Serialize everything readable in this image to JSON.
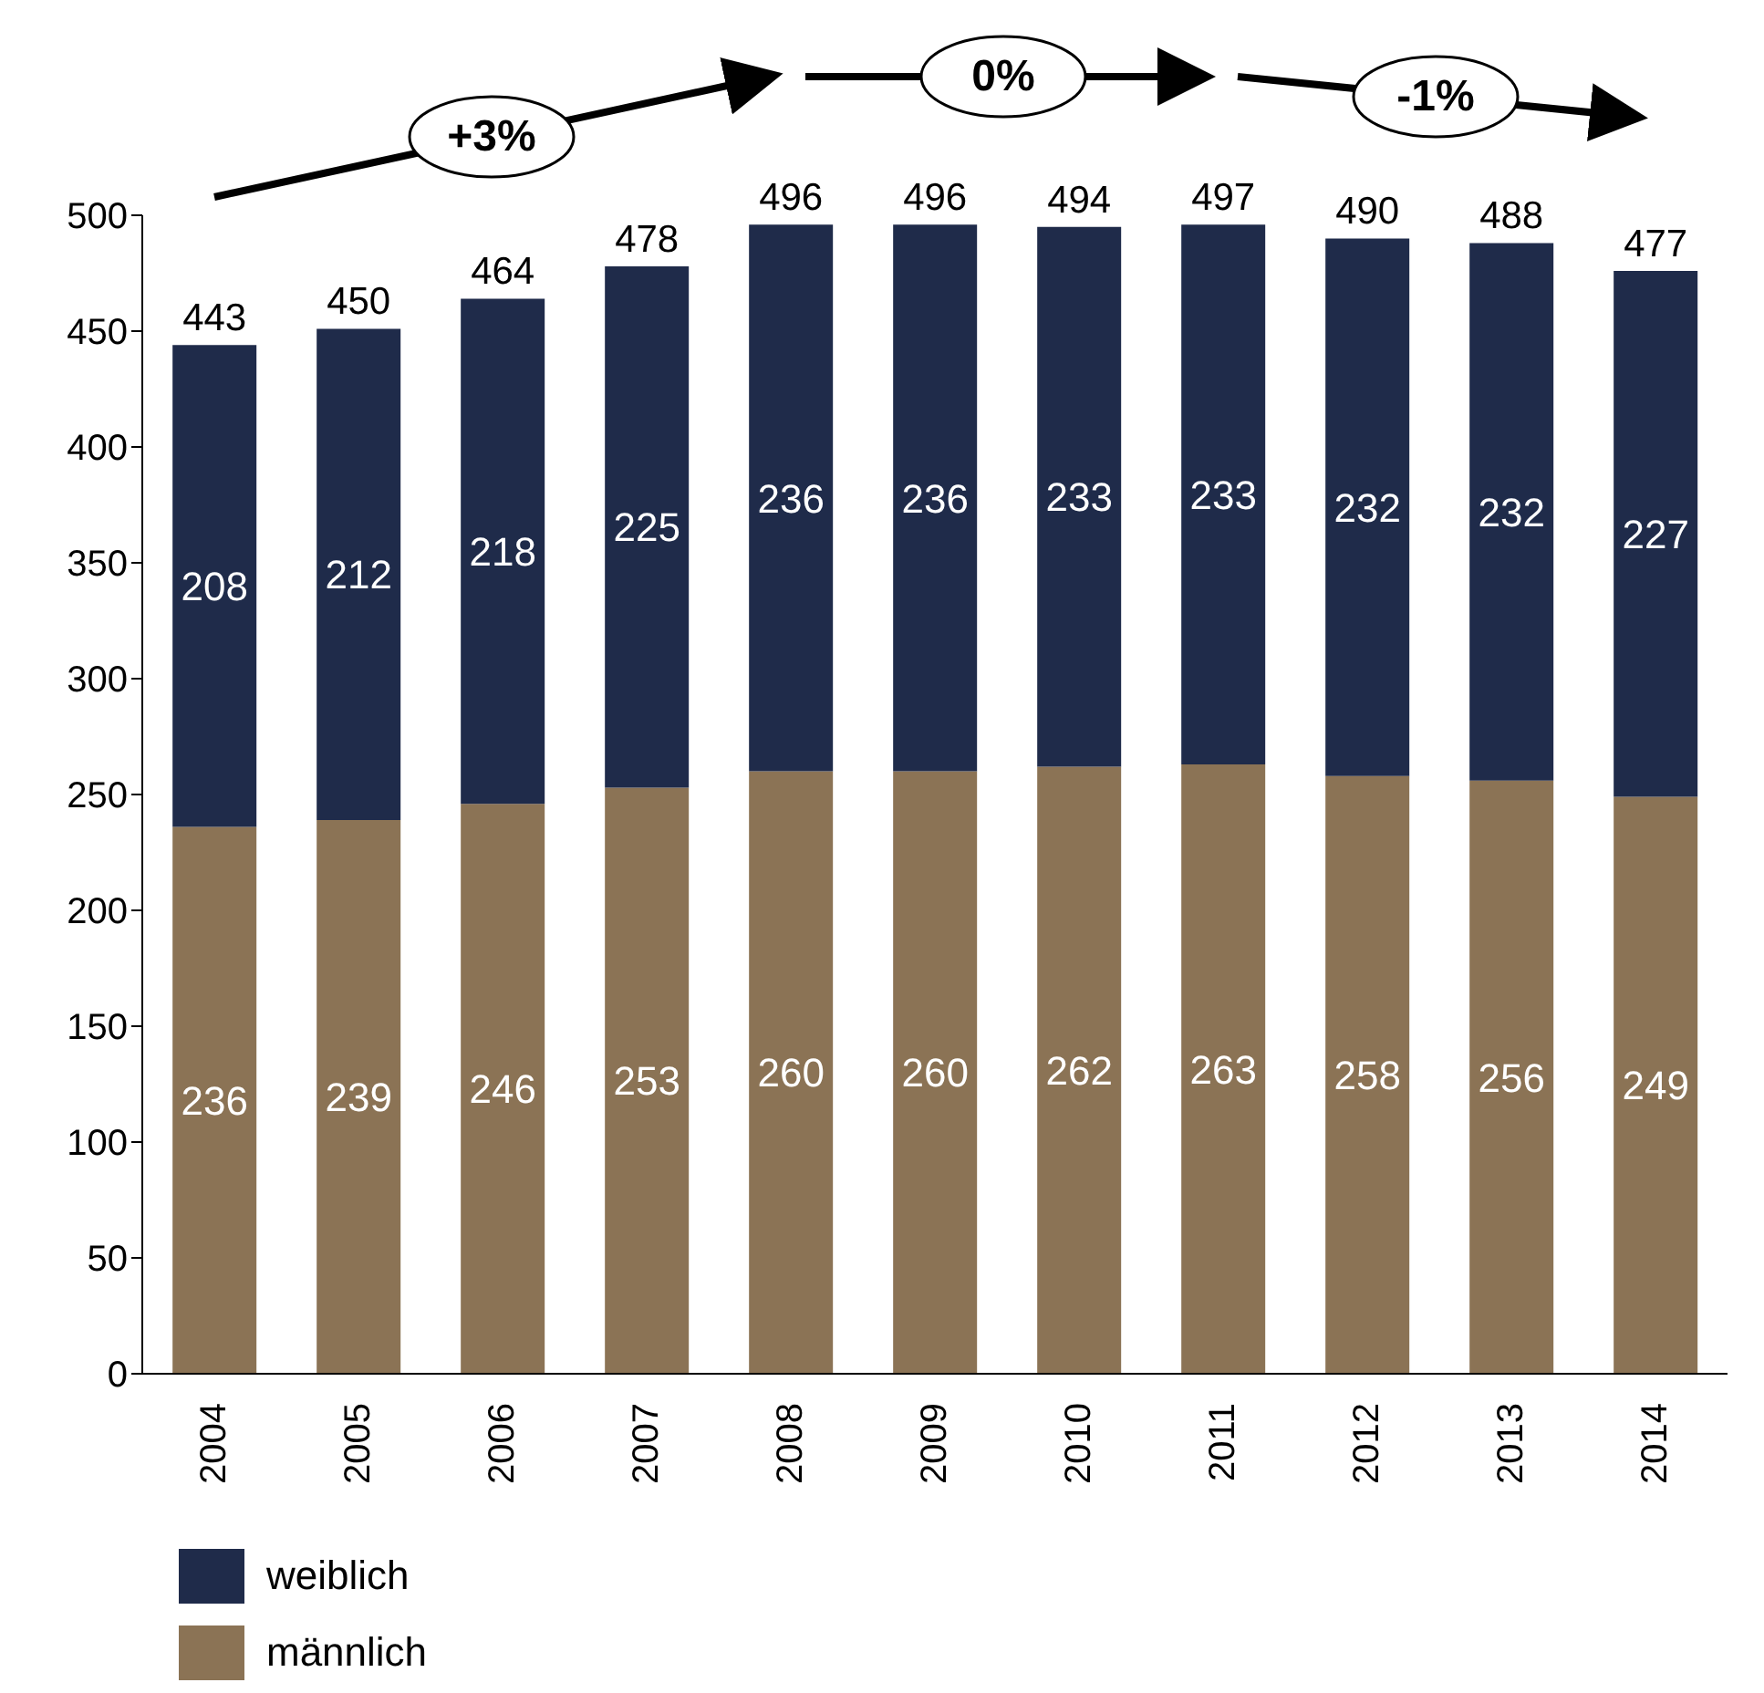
{
  "chart_data": {
    "type": "bar",
    "stacked": true,
    "categories": [
      "2004",
      "2005",
      "2006",
      "2007",
      "2008",
      "2009",
      "2010",
      "2011",
      "2012",
      "2013",
      "2014"
    ],
    "series": [
      {
        "name": "männlich",
        "color": "#8b7355",
        "values": [
          236,
          239,
          246,
          253,
          260,
          260,
          262,
          263,
          258,
          256,
          249
        ]
      },
      {
        "name": "weiblich",
        "color": "#1f2b4a",
        "values": [
          208,
          212,
          218,
          225,
          236,
          236,
          233,
          233,
          232,
          232,
          227
        ]
      }
    ],
    "totals": [
      "443",
      "450",
      "464",
      "478",
      "496",
      "496",
      "494",
      "497",
      "490",
      "488",
      "477"
    ],
    "data_labels": true,
    "ylim": [
      0,
      500
    ],
    "yticks": [
      0,
      50,
      100,
      150,
      200,
      250,
      300,
      350,
      400,
      450,
      500
    ],
    "grid": false,
    "legend": "bottom left",
    "annotations": [
      "+3%",
      "0%",
      "-1%"
    ]
  }
}
